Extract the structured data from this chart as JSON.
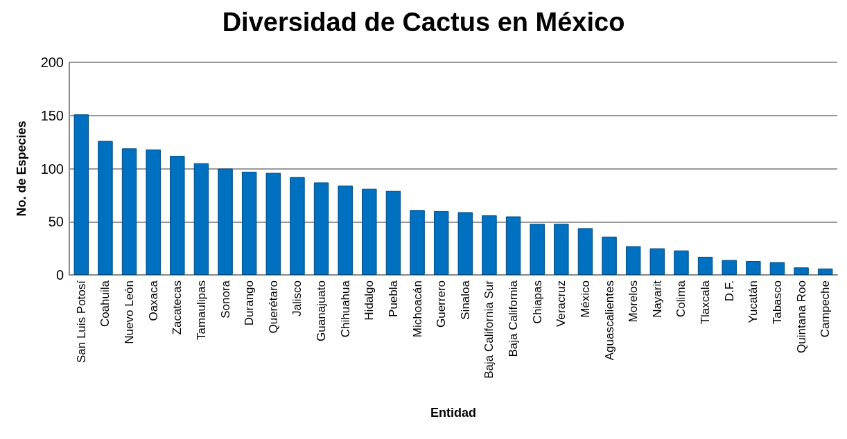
{
  "chart_data": {
    "type": "bar",
    "title": "Diversidad de Cactus en México",
    "xlabel": "Entidad",
    "ylabel": "No. de Especies",
    "categories": [
      "San Luis Potosí",
      "Coahuila",
      "Nuevo León",
      "Oaxaca",
      "Zacatecas",
      "Tamaulipas",
      "Sonora",
      "Durango",
      "Querétaro",
      "Jalisco",
      "Guanajuato",
      "Chihuahua",
      "Hidalgo",
      "Puebla",
      "Michoacán",
      "Guerrero",
      "Sinaloa",
      "Baja California Sur",
      "Baja California",
      "Chiapas",
      "Veracruz",
      "México",
      "Aguascalientes",
      "Morelos",
      "Nayarit",
      "Colima",
      "Tlaxcala",
      "D.F.",
      "Yucatán",
      "Tabasco",
      "Quintana Roo",
      "Campeche"
    ],
    "values": [
      151,
      126,
      119,
      118,
      112,
      105,
      100,
      97,
      96,
      92,
      87,
      84,
      81,
      79,
      61,
      60,
      59,
      56,
      55,
      48,
      48,
      44,
      36,
      27,
      25,
      23,
      17,
      14,
      13,
      12,
      7,
      6
    ],
    "color": "#0070c0",
    "ylim": [
      0,
      200
    ],
    "yticks": [
      0,
      50,
      100,
      150,
      200
    ],
    "grid": "y"
  }
}
